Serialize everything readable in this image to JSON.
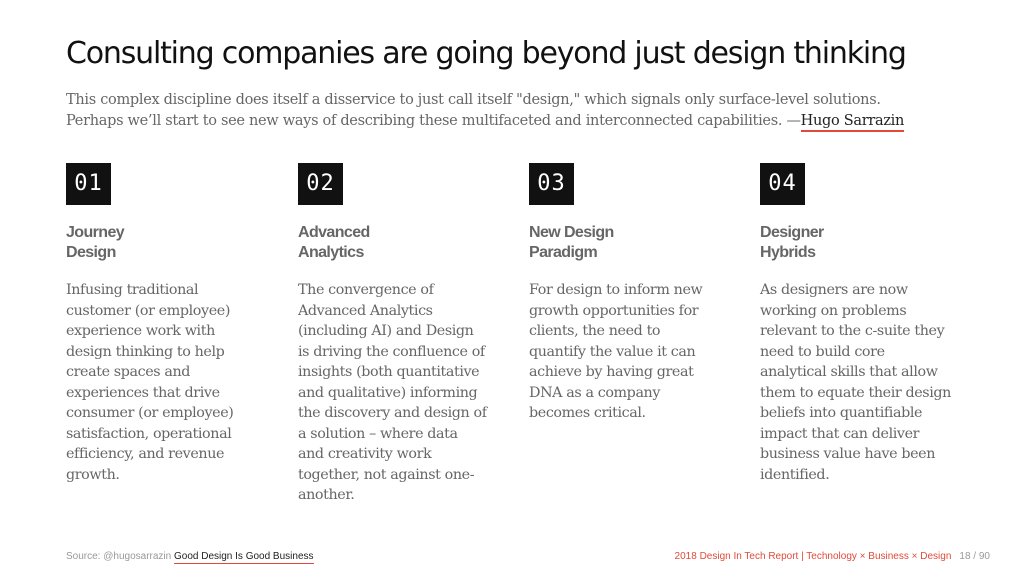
{
  "title": "Consulting companies are going beyond just design thinking",
  "intro": {
    "line1": "This complex discipline does itself a disservice to just call itself \"design,\" which signals only surface-level solutions.",
    "line2": "Perhaps we’ll start to see new ways of describing these multifaceted and interconnected capabilities. —",
    "author": "Hugo Sarrazin"
  },
  "columns": [
    {
      "number": "01",
      "heading": [
        "Journey",
        "Design"
      ],
      "body": [
        "Infusing traditional",
        "customer (or employee)",
        "experience work with",
        "design thinking to help",
        "create spaces and",
        "experiences that drive",
        "consumer (or employee)",
        "satisfaction, operational",
        "efficiency, and revenue",
        "growth."
      ]
    },
    {
      "number": "02",
      "heading": [
        "Advanced",
        "Analytics"
      ],
      "body": [
        "The convergence of",
        "Advanced Analytics",
        "(including AI) and Design",
        "is driving the confluence of",
        "insights (both quantitative",
        "and qualitative) informing",
        "the discovery and design of",
        "a solution – where data",
        "and creativity work",
        "together, not against one-",
        "another."
      ]
    },
    {
      "number": "03",
      "heading": [
        "New Design",
        "Paradigm"
      ],
      "body": [
        "For design to inform new",
        "growth opportunities for",
        "clients, the need to",
        "quantify the value it can",
        "achieve by having great",
        "DNA as a company",
        "becomes critical."
      ]
    },
    {
      "number": "04",
      "heading": [
        "Designer",
        "Hybrids"
      ],
      "body": [
        "As designers are now",
        "working on problems",
        "relevant to the c-suite they",
        "need to build core",
        "analytical skills that allow",
        "them to equate their design",
        "beliefs into quantifiable",
        "impact that can deliver",
        "business value have been",
        "identified."
      ]
    }
  ],
  "footer": {
    "source_prefix": "Source: @hugosarrazin ",
    "source_link": "Good Design Is Good Business",
    "report": "2018 Design In Tech Report | Technology × Business × Design",
    "page": "18 / 90"
  },
  "colors": {
    "accent": "#e04a3a",
    "text": "#666666",
    "title": "#111111"
  }
}
